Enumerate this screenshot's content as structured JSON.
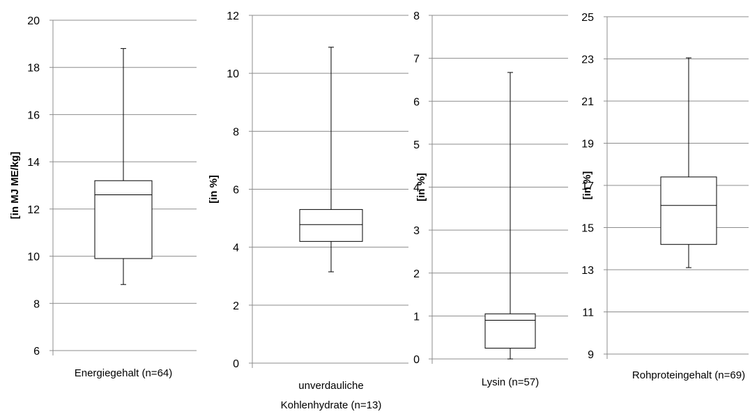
{
  "chart_data": [
    {
      "type": "box",
      "ylabel": "[in MJ ME/kg]",
      "category_lines": [
        "Energiegehalt (n=64)"
      ],
      "ylim": [
        6,
        20
      ],
      "ticks": [
        6,
        8,
        10,
        12,
        14,
        16,
        18,
        20
      ],
      "grid": true,
      "box": {
        "min": 8.8,
        "q1": 9.9,
        "median": 12.6,
        "q3": 13.2,
        "max": 18.8
      }
    },
    {
      "type": "box",
      "ylabel": "[in %]",
      "category_lines": [
        "unverdauliche",
        "Kohlenhydrate (n=13)"
      ],
      "ylim": [
        0,
        12
      ],
      "ticks": [
        0,
        2,
        4,
        6,
        8,
        10,
        12
      ],
      "grid": true,
      "box": {
        "min": 3.15,
        "q1": 4.2,
        "median": 4.78,
        "q3": 5.3,
        "max": 10.9
      }
    },
    {
      "type": "box",
      "ylabel": "[in %]",
      "category_lines": [
        "Lysin (n=57)"
      ],
      "ylim": [
        0,
        8
      ],
      "ticks": [
        0,
        1,
        2,
        3,
        4,
        5,
        6,
        7,
        8
      ],
      "grid": true,
      "box": {
        "min": 0,
        "q1": 0.25,
        "median": 0.9,
        "q3": 1.05,
        "max": 6.67
      }
    },
    {
      "type": "box",
      "ylabel": "[in %]",
      "category_lines": [
        "Rohproteingehalt (n=69)"
      ],
      "ylim": [
        9,
        25
      ],
      "ticks": [
        9,
        11,
        13,
        15,
        17,
        19,
        21,
        23,
        25
      ],
      "grid": true,
      "box": {
        "min": 13.1,
        "q1": 14.2,
        "median": 16.05,
        "q3": 17.4,
        "max": 23.05
      }
    }
  ]
}
